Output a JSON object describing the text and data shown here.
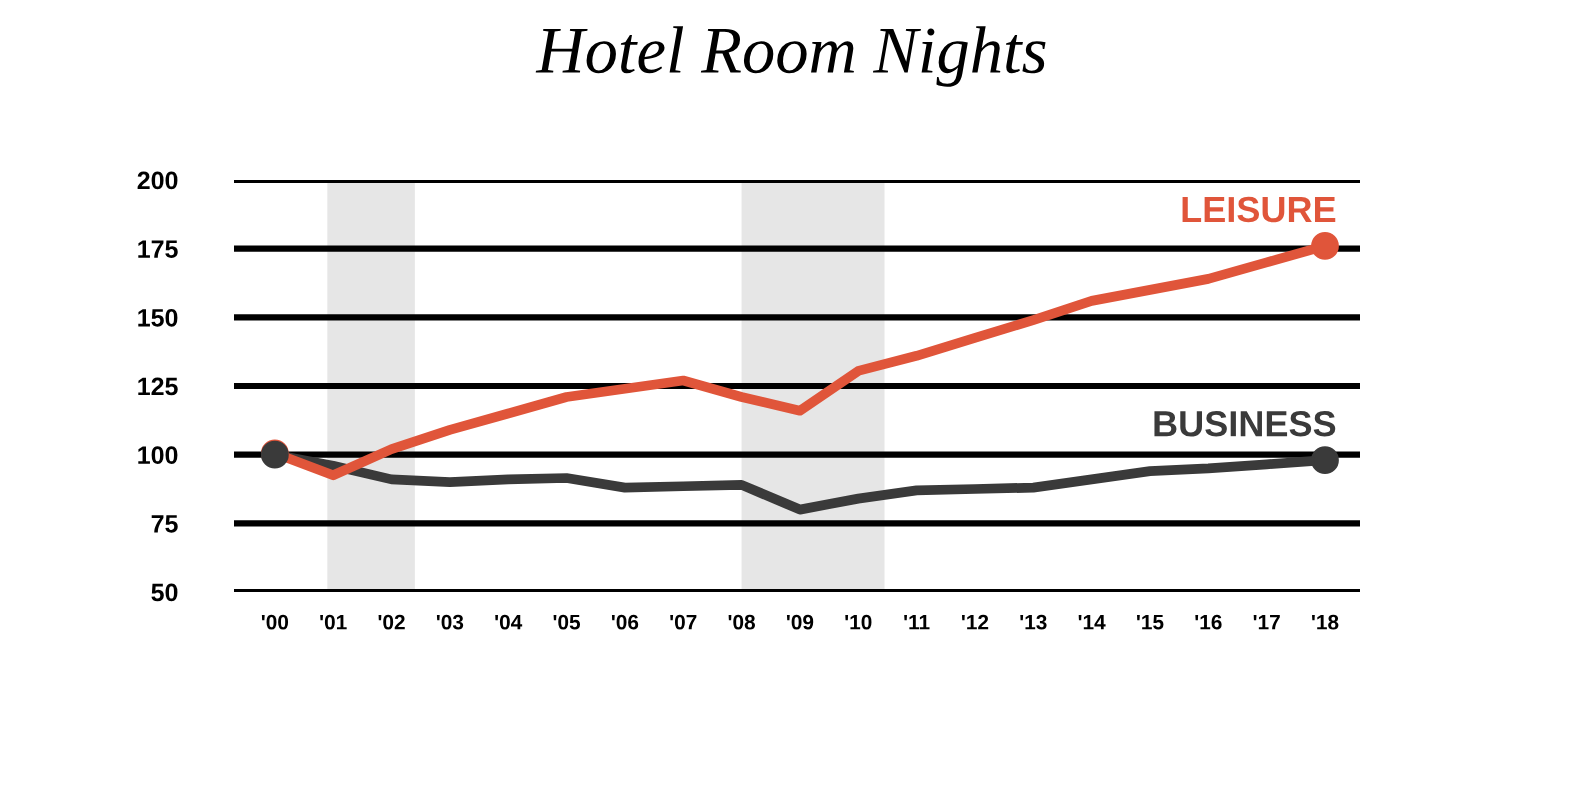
{
  "chart_data": {
    "type": "line",
    "title": "Hotel Room Nights",
    "x": [
      2000,
      2001,
      2002,
      2003,
      2004,
      2005,
      2006,
      2007,
      2008,
      2009,
      2010,
      2011,
      2012,
      2013,
      2014,
      2015,
      2016,
      2017,
      2018
    ],
    "series": [
      {
        "name": "LEISURE",
        "color": "#e0553a",
        "values": [
          100.5,
          92.5,
          102,
          109,
          115,
          121,
          124,
          127,
          121,
          116,
          130.5,
          136,
          142.5,
          149,
          156,
          160,
          164,
          170,
          176
        ]
      },
      {
        "name": "BUSINESS",
        "color": "#3a3a3a",
        "values": [
          100,
          96,
          91,
          90,
          91,
          91.5,
          88,
          88.5,
          89,
          80,
          84,
          87,
          87.5,
          88,
          91,
          94,
          95,
          96.5,
          98
        ]
      }
    ],
    "xlim": [
      1999.3,
      2018.6
    ],
    "xticks": [
      {
        "value": 2000,
        "label": "'00"
      },
      {
        "value": 2001,
        "label": "'01"
      },
      {
        "value": 2002,
        "label": "'02"
      },
      {
        "value": 2003,
        "label": "'03"
      },
      {
        "value": 2004,
        "label": "'04"
      },
      {
        "value": 2005,
        "label": "'05"
      },
      {
        "value": 2006,
        "label": "'06"
      },
      {
        "value": 2007,
        "label": "'07"
      },
      {
        "value": 2008,
        "label": "'08"
      },
      {
        "value": 2009,
        "label": "'09"
      },
      {
        "value": 2010,
        "label": "'10"
      },
      {
        "value": 2011,
        "label": "'11"
      },
      {
        "value": 2012,
        "label": "'12"
      },
      {
        "value": 2013,
        "label": "'13"
      },
      {
        "value": 2014,
        "label": "'14"
      },
      {
        "value": 2015,
        "label": "'15"
      },
      {
        "value": 2016,
        "label": "'16"
      },
      {
        "value": 2017,
        "label": "'17"
      },
      {
        "value": 2018,
        "label": "'18"
      }
    ],
    "ylim": [
      50,
      200
    ],
    "yticks": [
      50,
      75,
      100,
      125,
      150,
      175,
      200
    ],
    "grid": "y",
    "line_style": "solid",
    "bands": [
      {
        "axis": "x",
        "from": 2000.9,
        "to": 2002.4,
        "color": "#e6e6e6"
      },
      {
        "axis": "x",
        "from": 2008.0,
        "to": 2010.45,
        "color": "#e6e6e6"
      }
    ]
  }
}
